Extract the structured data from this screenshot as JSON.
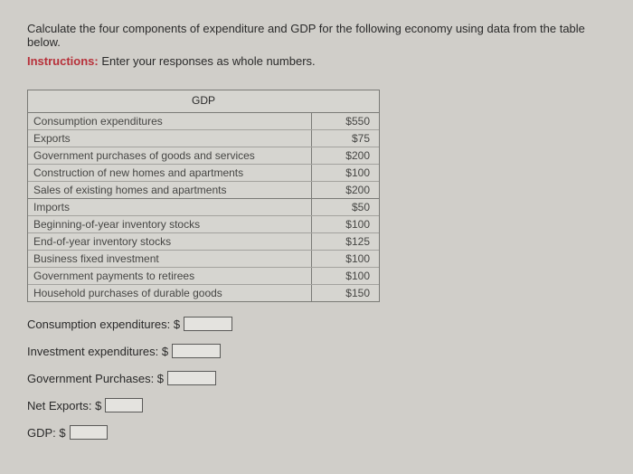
{
  "prompt": "Calculate the four components of expenditure and GDP for the following economy using data from the table below.",
  "instructions_label": "Instructions:",
  "instructions_text": " Enter your responses as whole numbers.",
  "table": {
    "title": "GDP",
    "rows": [
      {
        "label": "Consumption expenditures",
        "value": "$550",
        "thick": false
      },
      {
        "label": "Exports",
        "value": "$75",
        "thick": false
      },
      {
        "label": "Government purchases of goods and services",
        "value": "$200",
        "thick": false
      },
      {
        "label": "Construction of new homes and apartments",
        "value": "$100",
        "thick": false
      },
      {
        "label": "Sales of existing homes and apartments",
        "value": "$200",
        "thick": true
      },
      {
        "label": "Imports",
        "value": "$50",
        "thick": false
      },
      {
        "label": "Beginning-of-year inventory stocks",
        "value": "$100",
        "thick": false
      },
      {
        "label": "End-of-year inventory stocks",
        "value": "$125",
        "thick": false
      },
      {
        "label": "Business fixed investment",
        "value": "$100",
        "thick": false
      },
      {
        "label": "Government payments to retirees",
        "value": "$100",
        "thick": false
      },
      {
        "label": "Household purchases of durable goods",
        "value": "$150",
        "thick": false
      }
    ]
  },
  "answers": {
    "consumption": "Consumption expenditures: $",
    "investment": "Investment expenditures: $",
    "government": "Government Purchases: $",
    "netexports": "Net Exports: $",
    "gdp": "GDP: $"
  }
}
